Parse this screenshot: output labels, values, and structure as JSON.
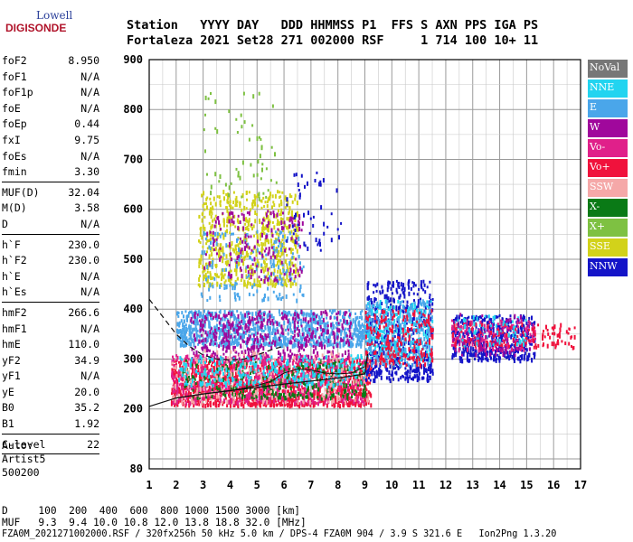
{
  "logo": {
    "line1": "Lowell",
    "line2": "DIGISONDE"
  },
  "header": {
    "line1": "Station   YYYY DAY   DDD HHMMSS P1  FFS S AXN PPS IGA PS",
    "line2": "Fortaleza 2021 Set28 271 002000 RSF     1 714 100 10+ 11"
  },
  "params": [
    {
      "k": "foF2",
      "v": "8.950"
    },
    {
      "k": "foF1",
      "v": "N/A"
    },
    {
      "k": "foF1p",
      "v": "N/A"
    },
    {
      "k": "foE",
      "v": "N/A"
    },
    {
      "k": "foEp",
      "v": "0.44"
    },
    {
      "k": "fxI",
      "v": "9.75"
    },
    {
      "k": "foEs",
      "v": "N/A"
    },
    {
      "k": "fmin",
      "v": "3.30"
    },
    {
      "k": "MUF(D)",
      "v": "32.04"
    },
    {
      "k": "M(D)",
      "v": "3.58"
    },
    {
      "k": "D",
      "v": "N/A"
    },
    {
      "k": "h`F",
      "v": "230.0"
    },
    {
      "k": "h`F2",
      "v": "230.0"
    },
    {
      "k": "h`E",
      "v": "N/A"
    },
    {
      "k": "h`Es",
      "v": "N/A"
    },
    {
      "k": "hmF2",
      "v": "266.6"
    },
    {
      "k": "hmF1",
      "v": "N/A"
    },
    {
      "k": "hmE",
      "v": "110.0"
    },
    {
      "k": "yF2",
      "v": "34.9"
    },
    {
      "k": "yF1",
      "v": "N/A"
    },
    {
      "k": "yE",
      "v": "20.0"
    },
    {
      "k": "B0",
      "v": "35.2"
    },
    {
      "k": "B1",
      "v": "1.92"
    },
    {
      "k": "C-level",
      "v": "22"
    }
  ],
  "auto": {
    "l1": "Auto:",
    "l2": "Artist5",
    "l3": "500200"
  },
  "footer": {
    "d_row": "D     100  200  400  600  800 1000 1500 3000 [km]",
    "muf_row": "MUF   9.3  9.4 10.0 10.8 12.0 13.8 18.8 32.0 [MHz]",
    "file_row": "FZA0M_2021271002000.RSF / 320fx256h 50 kHz 5.0 km / DPS-4 FZA0M 904 / 3.9 S 321.6 E   Ion2Png 1.3.20"
  },
  "legend": [
    {
      "label": "NoVal",
      "color": "#777777"
    },
    {
      "label": "NNE",
      "color": "#22d4f0"
    },
    {
      "label": "E",
      "color": "#4aa6ea"
    },
    {
      "label": "W",
      "color": "#a0089c"
    },
    {
      "label": "Vo-",
      "color": "#e0208a"
    },
    {
      "label": "Vo+",
      "color": "#f0123c"
    },
    {
      "label": "SSW",
      "color": "#f5a8a8"
    },
    {
      "label": "X-",
      "color": "#0a7a16"
    },
    {
      "label": "X+",
      "color": "#7ec142"
    },
    {
      "label": "SSE",
      "color": "#d2d21a"
    },
    {
      "label": "NNW",
      "color": "#1414c8"
    }
  ],
  "chart_data": {
    "type": "scatter",
    "x_ticks": [
      1,
      2,
      3,
      4,
      5,
      6,
      7,
      8,
      9,
      10,
      11,
      12,
      13,
      14,
      15,
      16,
      17
    ],
    "y_ticks": [
      80,
      200,
      300,
      400,
      500,
      600,
      700,
      800,
      900
    ],
    "xlim": [
      1,
      17
    ],
    "ylim": [
      80,
      900
    ],
    "grid": true,
    "echo_regions": [
      {
        "color": "#d2d21a",
        "x": [
          2.8,
          6.5
        ],
        "y": [
          450,
          640
        ],
        "count": 650
      },
      {
        "color": "#4aa6ea",
        "x": [
          2.9,
          6.7
        ],
        "y": [
          420,
          560
        ],
        "count": 160
      },
      {
        "color": "#a0089c",
        "x": [
          3.0,
          6.7
        ],
        "y": [
          460,
          600
        ],
        "count": 160
      },
      {
        "color": "#7ec142",
        "x": [
          3.0,
          5.7
        ],
        "y": [
          620,
          850
        ],
        "count": 60
      },
      {
        "color": "#1414c8",
        "x": [
          6.0,
          8.2
        ],
        "y": [
          520,
          680
        ],
        "count": 50
      },
      {
        "color": "#4aa6ea",
        "x": [
          2.0,
          9.2
        ],
        "y": [
          330,
          400
        ],
        "count": 950
      },
      {
        "color": "#a0089c",
        "x": [
          2.5,
          8.5
        ],
        "y": [
          300,
          400
        ],
        "count": 450
      },
      {
        "color": "#f0123c",
        "x": [
          1.8,
          9.2
        ],
        "y": [
          210,
          300
        ],
        "count": 1300
      },
      {
        "color": "#e0208a",
        "x": [
          1.8,
          9.0
        ],
        "y": [
          215,
          310
        ],
        "count": 600
      },
      {
        "color": "#0a7a16",
        "x": [
          2.2,
          9.0
        ],
        "y": [
          225,
          300
        ],
        "count": 280
      },
      {
        "color": "#f5a8a8",
        "x": [
          1.8,
          9.2
        ],
        "y": [
          215,
          320
        ],
        "count": 220
      },
      {
        "color": "#22d4f0",
        "x": [
          2.0,
          9.0
        ],
        "y": [
          250,
          310
        ],
        "count": 280
      },
      {
        "color": "#1414c8",
        "x": [
          9.0,
          11.5
        ],
        "y": [
          260,
          460
        ],
        "count": 500
      },
      {
        "color": "#22d4f0",
        "x": [
          9.0,
          11.5
        ],
        "y": [
          300,
          420
        ],
        "count": 280
      },
      {
        "color": "#4aa6ea",
        "x": [
          9.0,
          11.5
        ],
        "y": [
          290,
          420
        ],
        "count": 220
      },
      {
        "color": "#f0123c",
        "x": [
          9.0,
          11.5
        ],
        "y": [
          290,
          400
        ],
        "count": 200
      },
      {
        "color": "#1414c8",
        "x": [
          12.2,
          15.3
        ],
        "y": [
          300,
          390
        ],
        "count": 450
      },
      {
        "color": "#e0208a",
        "x": [
          12.2,
          15.3
        ],
        "y": [
          320,
          380
        ],
        "count": 160
      },
      {
        "color": "#f0123c",
        "x": [
          12.2,
          16.8
        ],
        "y": [
          325,
          375
        ],
        "count": 140
      },
      {
        "color": "#22d4f0",
        "x": [
          12.3,
          15.0
        ],
        "y": [
          330,
          390
        ],
        "count": 60
      },
      {
        "color": "#a0089c",
        "x": [
          12.2,
          15.2
        ],
        "y": [
          310,
          395
        ],
        "count": 60
      }
    ],
    "lines": [
      {
        "style": "solid",
        "points": [
          [
            1,
            205
          ],
          [
            2,
            222
          ],
          [
            3,
            230
          ],
          [
            4,
            237
          ],
          [
            5,
            243
          ],
          [
            6,
            250
          ],
          [
            7,
            256
          ],
          [
            8,
            262
          ],
          [
            9,
            270
          ],
          [
            9.1,
            310
          ]
        ]
      },
      {
        "style": "dashed",
        "points": [
          [
            1,
            420
          ],
          [
            1.5,
            385
          ],
          [
            2,
            350
          ],
          [
            2.5,
            325
          ],
          [
            3,
            308
          ],
          [
            3.5,
            300
          ],
          [
            4,
            298
          ],
          [
            4.5,
            300
          ],
          [
            5,
            308
          ],
          [
            5.5,
            318
          ],
          [
            6,
            326
          ]
        ]
      },
      {
        "style": "solid-thin",
        "points": [
          [
            2,
            222
          ],
          [
            3,
            230
          ],
          [
            4,
            236
          ],
          [
            5,
            247
          ],
          [
            5.5,
            255
          ],
          [
            6,
            272
          ],
          [
            6.5,
            280
          ],
          [
            7,
            278
          ],
          [
            7.5,
            272
          ],
          [
            8,
            270
          ],
          [
            8.5,
            272
          ],
          [
            9,
            285
          ]
        ]
      }
    ]
  }
}
